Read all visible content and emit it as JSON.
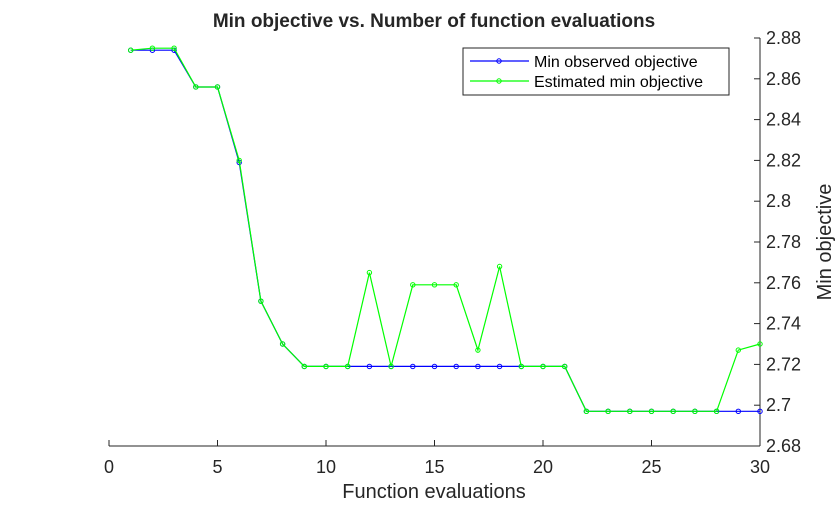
{
  "chart_data": {
    "type": "line",
    "title": "Min objective vs. Number of function evaluations",
    "xlabel": "Function evaluations",
    "ylabel": "Min objective",
    "xlim": [
      0,
      30
    ],
    "ylim": [
      2.68,
      2.88
    ],
    "xticks": [
      0,
      5,
      10,
      15,
      20,
      25,
      30
    ],
    "yticks": [
      2.68,
      2.7,
      2.72,
      2.74,
      2.76,
      2.78,
      2.8,
      2.82,
      2.84,
      2.86,
      2.88
    ],
    "ytick_labels": [
      "2.68",
      "2.7",
      "2.72",
      "2.74",
      "2.76",
      "2.78",
      "2.8",
      "2.82",
      "2.84",
      "2.86",
      "2.88"
    ],
    "y_axis_position": "right",
    "grid": false,
    "legend_position": "top-right",
    "x": [
      1,
      2,
      3,
      4,
      5,
      6,
      7,
      8,
      9,
      10,
      11,
      12,
      13,
      14,
      15,
      16,
      17,
      18,
      19,
      20,
      21,
      22,
      23,
      24,
      25,
      26,
      27,
      28,
      29,
      30
    ],
    "series": [
      {
        "name": "Min observed objective",
        "color": "#0000ff",
        "values": [
          2.874,
          2.874,
          2.874,
          2.856,
          2.856,
          2.819,
          2.751,
          2.73,
          2.719,
          2.719,
          2.719,
          2.719,
          2.719,
          2.719,
          2.719,
          2.719,
          2.719,
          2.719,
          2.719,
          2.719,
          2.719,
          2.697,
          2.697,
          2.697,
          2.697,
          2.697,
          2.697,
          2.697,
          2.697,
          2.697
        ]
      },
      {
        "name": "Estimated min objective",
        "color": "#00ff00",
        "values": [
          2.874,
          2.875,
          2.875,
          2.856,
          2.856,
          2.82,
          2.751,
          2.73,
          2.719,
          2.719,
          2.719,
          2.765,
          2.719,
          2.759,
          2.759,
          2.759,
          2.727,
          2.768,
          2.719,
          2.719,
          2.719,
          2.697,
          2.697,
          2.697,
          2.697,
          2.697,
          2.697,
          2.697,
          2.727,
          2.73
        ]
      }
    ]
  }
}
